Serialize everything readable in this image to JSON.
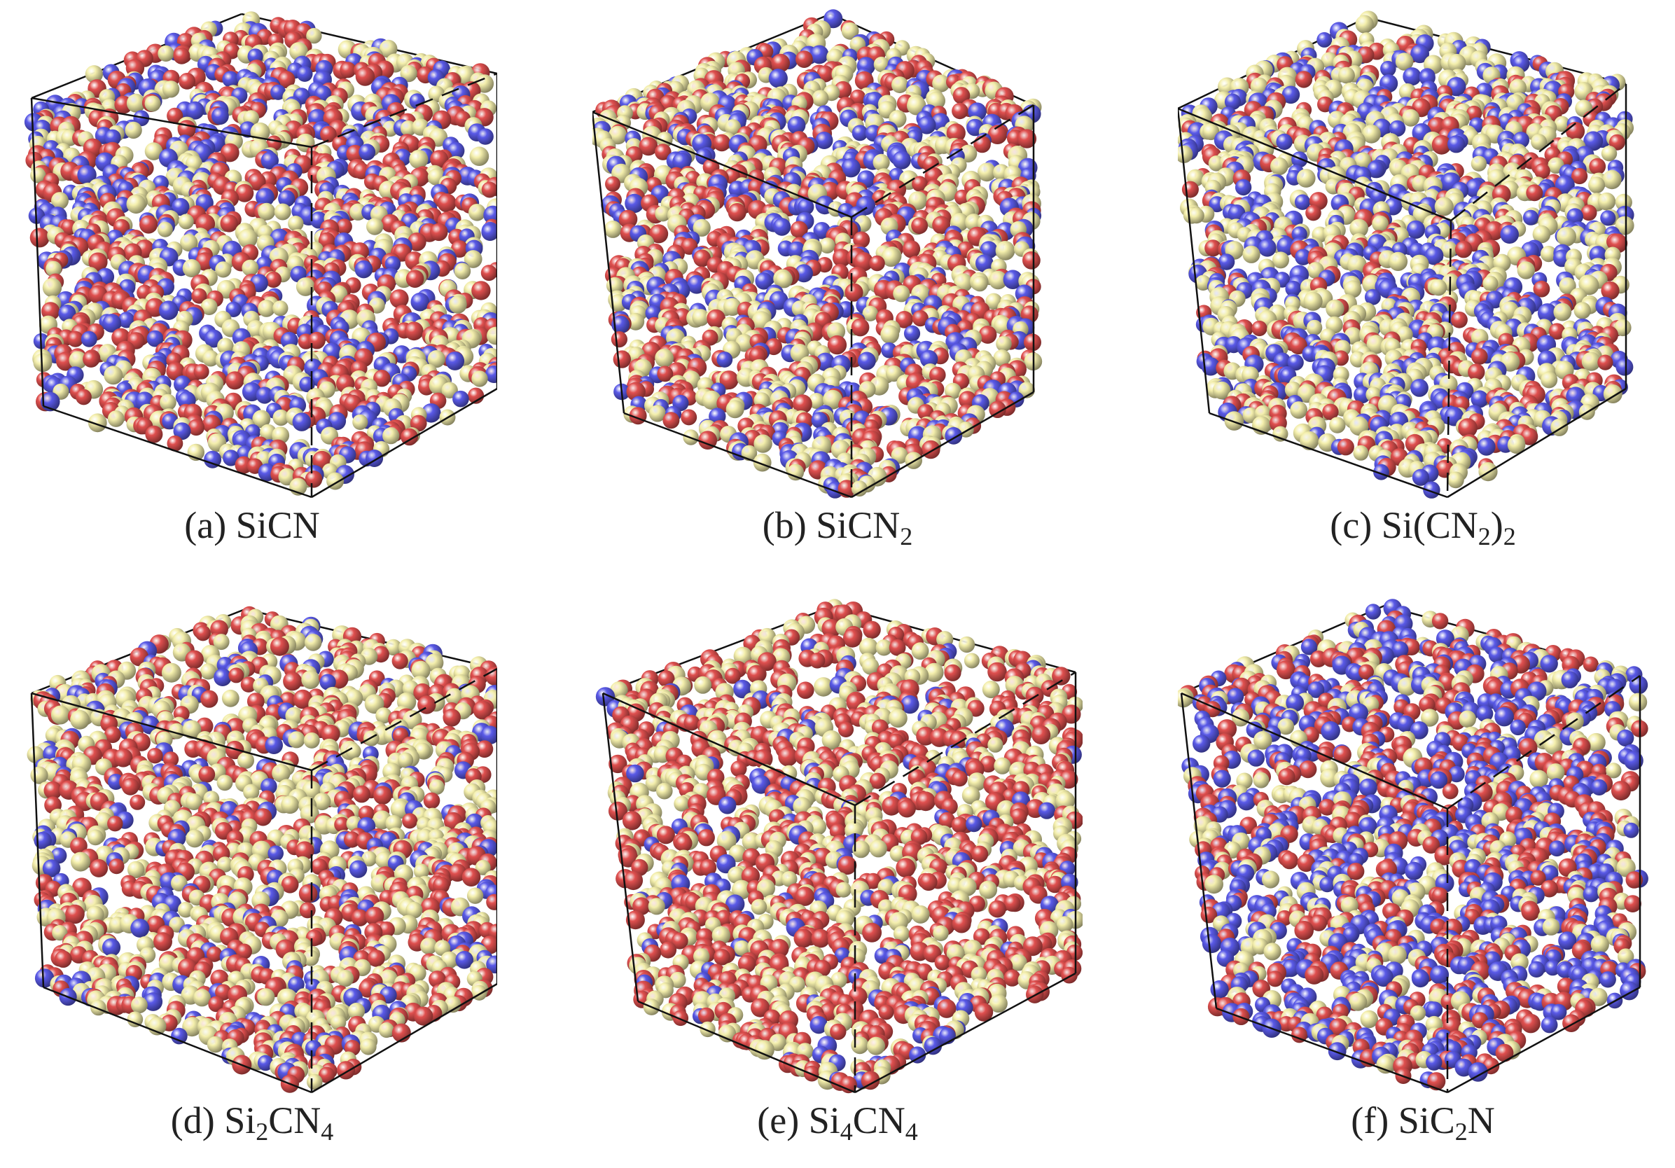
{
  "colors": {
    "red": "#e0504f",
    "blue": "#5a5ae8",
    "cream": "#f4efac",
    "edge": "#111111"
  },
  "panels": [
    {
      "id": "a",
      "label_prefix": "(a) ",
      "parts": [
        {
          "t": "SiCN",
          "sub": ""
        }
      ],
      "mix": [
        0.36,
        0.28,
        0.36
      ]
    },
    {
      "id": "b",
      "label_prefix": "(b) ",
      "parts": [
        {
          "t": "SiCN",
          "sub": "2"
        }
      ],
      "mix": [
        0.34,
        0.24,
        0.42
      ]
    },
    {
      "id": "c",
      "label_prefix": "(c) ",
      "parts": [
        {
          "t": "Si(CN",
          "sub": "2"
        },
        {
          "t": ")",
          "sub": "2"
        }
      ],
      "mix": [
        0.22,
        0.3,
        0.48
      ]
    },
    {
      "id": "d",
      "label_prefix": "(d) ",
      "parts": [
        {
          "t": "Si",
          "sub": "2"
        },
        {
          "t": "CN",
          "sub": "4"
        }
      ],
      "mix": [
        0.38,
        0.14,
        0.48
      ]
    },
    {
      "id": "e",
      "label_prefix": "(e) ",
      "parts": [
        {
          "t": "Si",
          "sub": "4"
        },
        {
          "t": "CN",
          "sub": "4"
        }
      ],
      "mix": [
        0.5,
        0.1,
        0.4
      ]
    },
    {
      "id": "f",
      "label_prefix": "(f) ",
      "parts": [
        {
          "t": "SiC",
          "sub": "2"
        },
        {
          "t": "N",
          "sub": ""
        }
      ],
      "mix": [
        0.36,
        0.44,
        0.2
      ]
    }
  ]
}
